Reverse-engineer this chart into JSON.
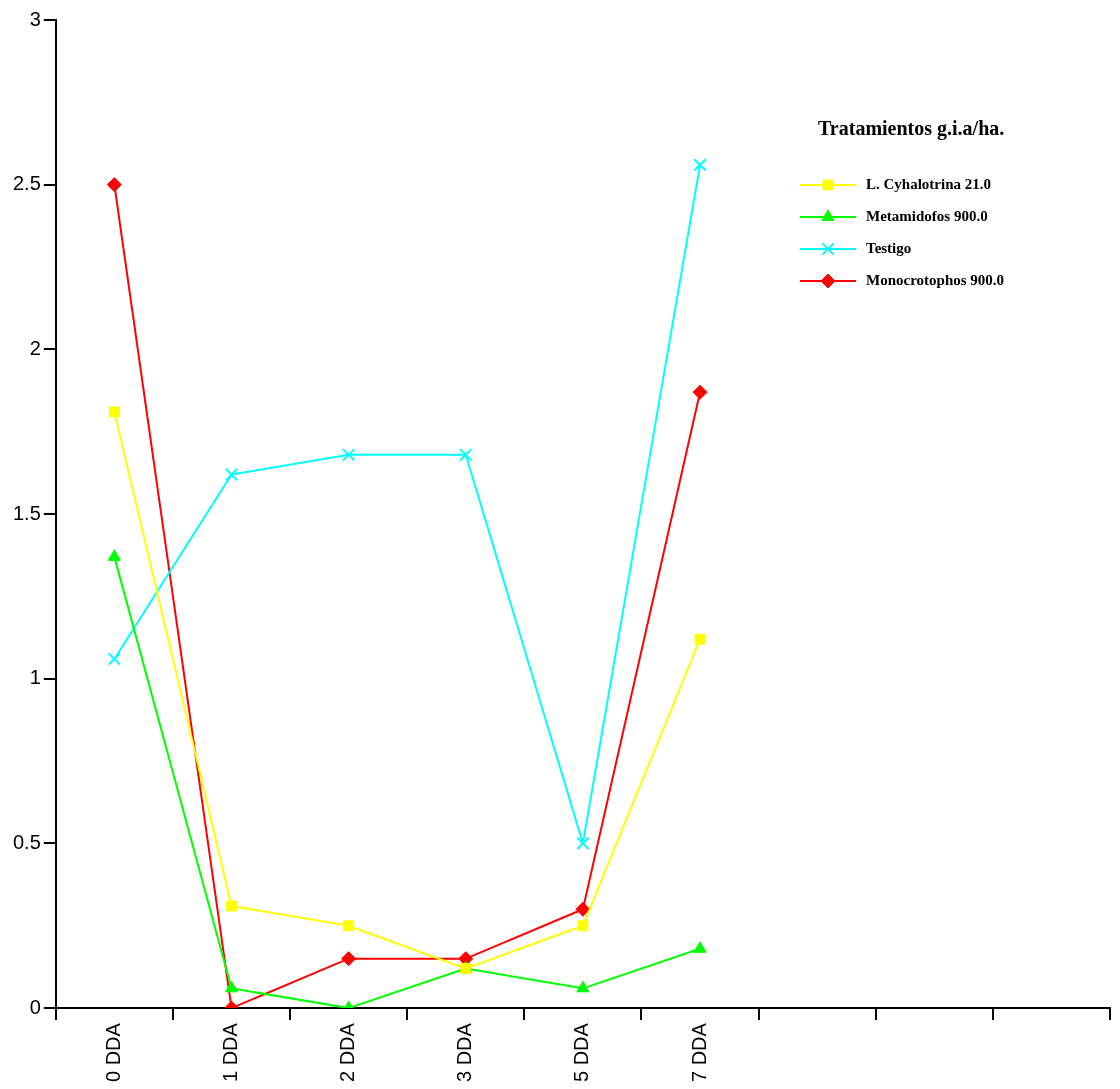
{
  "chart_data": {
    "type": "line",
    "categories": [
      "0 DDA",
      "1 DDA",
      "2 DDA",
      "3 DDA",
      "5 DDA",
      "7 DDA",
      null,
      null,
      null
    ],
    "series": [
      {
        "name": "L. Cyhalotrina 21.0",
        "color": "#ffff00",
        "marker": "square",
        "values": [
          1.81,
          0.31,
          0.25,
          0.12,
          0.25,
          1.12,
          null,
          null,
          null
        ]
      },
      {
        "name": "Metamidofos 900.0",
        "color": "#00ff00",
        "marker": "triangle",
        "values": [
          1.37,
          0.06,
          0.0,
          0.12,
          0.06,
          0.18,
          null,
          null,
          null
        ]
      },
      {
        "name": "Testigo",
        "color": "#00ffff",
        "marker": "cross",
        "values": [
          1.06,
          1.62,
          1.68,
          1.68,
          0.5,
          2.56,
          null,
          null,
          null
        ]
      },
      {
        "name": "Monocrotophos 900.0",
        "color": "#ff0000",
        "marker": "diamond",
        "values": [
          2.5,
          0.0,
          0.15,
          0.15,
          0.3,
          1.87,
          null,
          null,
          null
        ]
      }
    ],
    "legend_title": "Tratamientos g.i.a/ha.",
    "legend": "top right",
    "ylim": [
      0,
      3
    ],
    "yticks": [
      0,
      0.5,
      1,
      1.5,
      2,
      2.5,
      3
    ],
    "grid": false,
    "line_style": "solid"
  }
}
